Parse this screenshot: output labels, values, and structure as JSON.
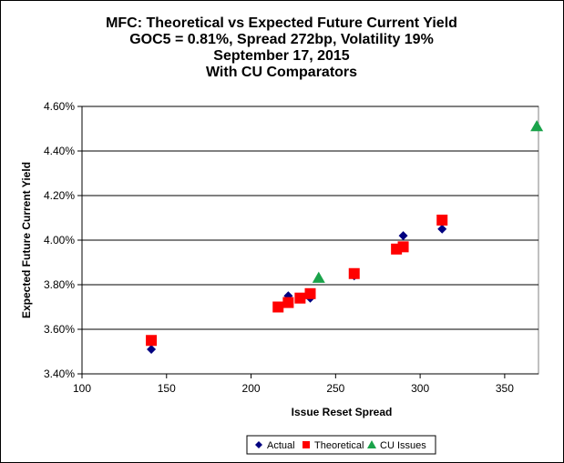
{
  "chart_data": {
    "type": "scatter",
    "title": [
      "MFC: Theoretical vs Expected Future Current Yield",
      "GOC5 = 0.81%, Spread 272bp, Volatility  19%",
      "September 17, 2015",
      "With CU Comparators"
    ],
    "xlabel": "Issue  Reset  Spread",
    "ylabel": "Expected Future Current Yield",
    "xlim": [
      100,
      370
    ],
    "ylim": [
      3.4,
      4.6
    ],
    "x_ticks": [
      100,
      150,
      200,
      250,
      300,
      350
    ],
    "y_ticks": [
      3.4,
      3.6,
      3.8,
      4.0,
      4.2,
      4.4,
      4.6
    ],
    "y_tick_labels": [
      "3.40%",
      "3.60%",
      "3.80%",
      "4.00%",
      "4.20%",
      "4.40%",
      "4.60%"
    ],
    "grid": "horizontal",
    "legend_position": "bottom",
    "series": [
      {
        "name": "Actual",
        "marker": "diamond",
        "color": "#000080",
        "points": [
          [
            141,
            3.51
          ],
          [
            216,
            3.7
          ],
          [
            222,
            3.75
          ],
          [
            229,
            3.74
          ],
          [
            235,
            3.74
          ],
          [
            261,
            3.84
          ],
          [
            286,
            3.96
          ],
          [
            290,
            4.02
          ],
          [
            313,
            4.05
          ]
        ]
      },
      {
        "name": "Theoretical",
        "marker": "square",
        "color": "#ff0000",
        "points": [
          [
            141,
            3.55
          ],
          [
            216,
            3.7
          ],
          [
            222,
            3.72
          ],
          [
            229,
            3.74
          ],
          [
            235,
            3.76
          ],
          [
            261,
            3.85
          ],
          [
            286,
            3.96
          ],
          [
            290,
            3.97
          ],
          [
            313,
            4.09
          ]
        ]
      },
      {
        "name": "CU Issues",
        "marker": "triangle",
        "color": "#1aa34a",
        "points": [
          [
            240,
            3.83
          ],
          [
            369,
            4.51
          ]
        ]
      }
    ]
  }
}
